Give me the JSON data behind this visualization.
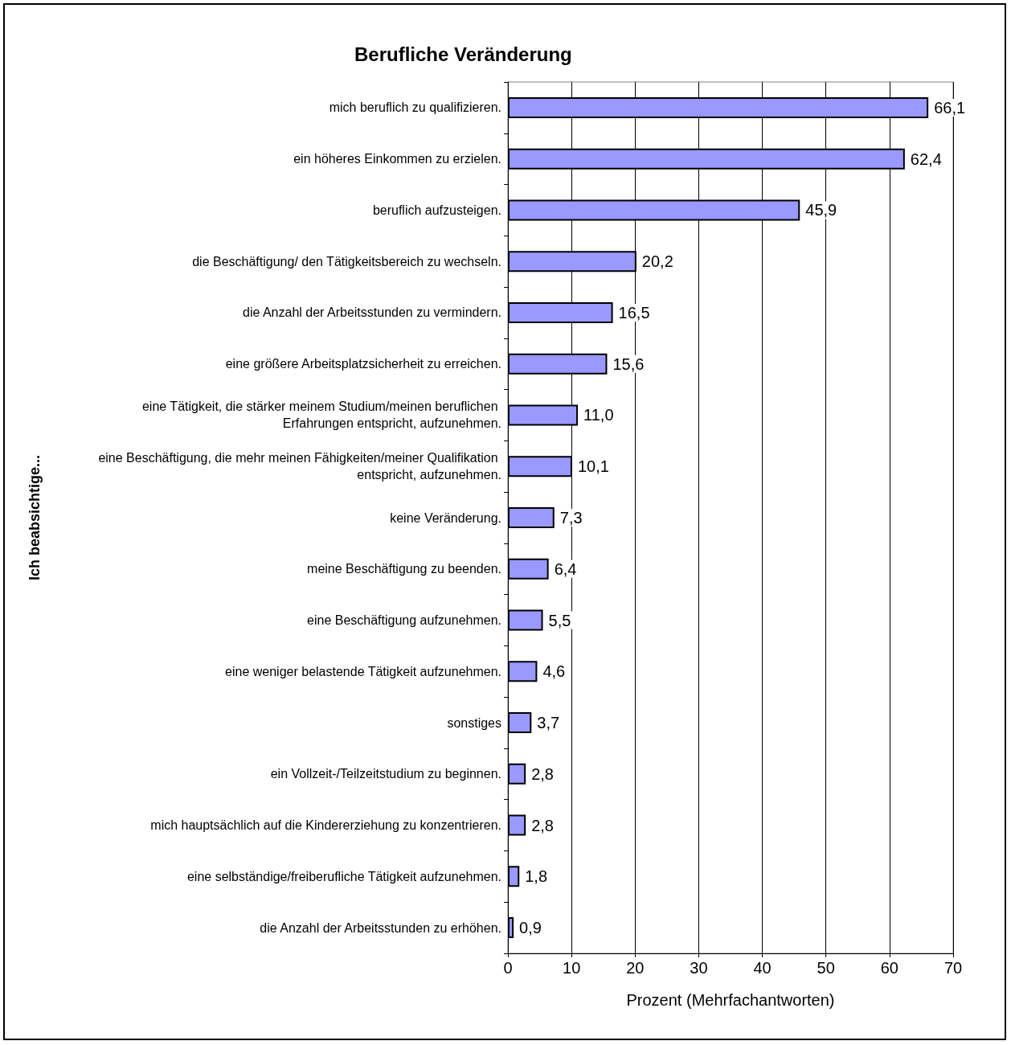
{
  "chart_data": {
    "type": "bar",
    "orientation": "horizontal",
    "title": "Berufliche Veränderung",
    "xlabel": "Prozent (Mehrfachantworten)",
    "ylabel": "Ich beabsichtige...",
    "categories": [
      "mich beruflich zu qualifizieren.",
      "ein höheres Einkommen zu erzielen.",
      "beruflich aufzusteigen.",
      "die Beschäftigung/ den Tätigkeitsbereich zu wechseln.",
      "die Anzahl der Arbeitsstunden zu vermindern.",
      "eine größere Arbeitsplatzsicherheit zu erreichen.",
      "eine Tätigkeit, die stärker meinem Studium/meinen beruflichen Erfahrungen entspricht, aufzunehmen.",
      "eine Beschäftigung, die mehr meinen Fähigkeiten/meiner Qualifikation entspricht, aufzunehmen.",
      "keine Veränderung.",
      "meine Beschäftigung zu beenden.",
      "eine Beschäftigung aufzunehmen.",
      "eine weniger belastende Tätigkeit aufzunehmen.",
      "sonstiges",
      "ein Vollzeit-/Teilzeitstudium zu beginnen.",
      "mich hauptsächlich auf die Kindererziehung zu konzentrieren.",
      "eine selbständige/freiberufliche Tätigkeit aufzunehmen.",
      "die Anzahl der Arbeitsstunden zu erhöhen."
    ],
    "values": [
      66.1,
      62.4,
      45.9,
      20.2,
      16.5,
      15.6,
      11.0,
      10.1,
      7.3,
      6.4,
      5.5,
      4.6,
      3.7,
      2.8,
      2.8,
      1.8,
      0.9
    ],
    "value_labels": [
      "66,1",
      "62,4",
      "45,9",
      "20,2",
      "16,5",
      "15,6",
      "11,0",
      "10,1",
      "7,3",
      "6,4",
      "5,5",
      "4,6",
      "3,7",
      "2,8",
      "2,8",
      "1,8",
      "0,9"
    ],
    "color": "#9999ff",
    "xlim": [
      0,
      70
    ],
    "xticks": [
      0,
      10,
      20,
      30,
      40,
      50,
      60,
      70
    ],
    "grid": "x"
  }
}
